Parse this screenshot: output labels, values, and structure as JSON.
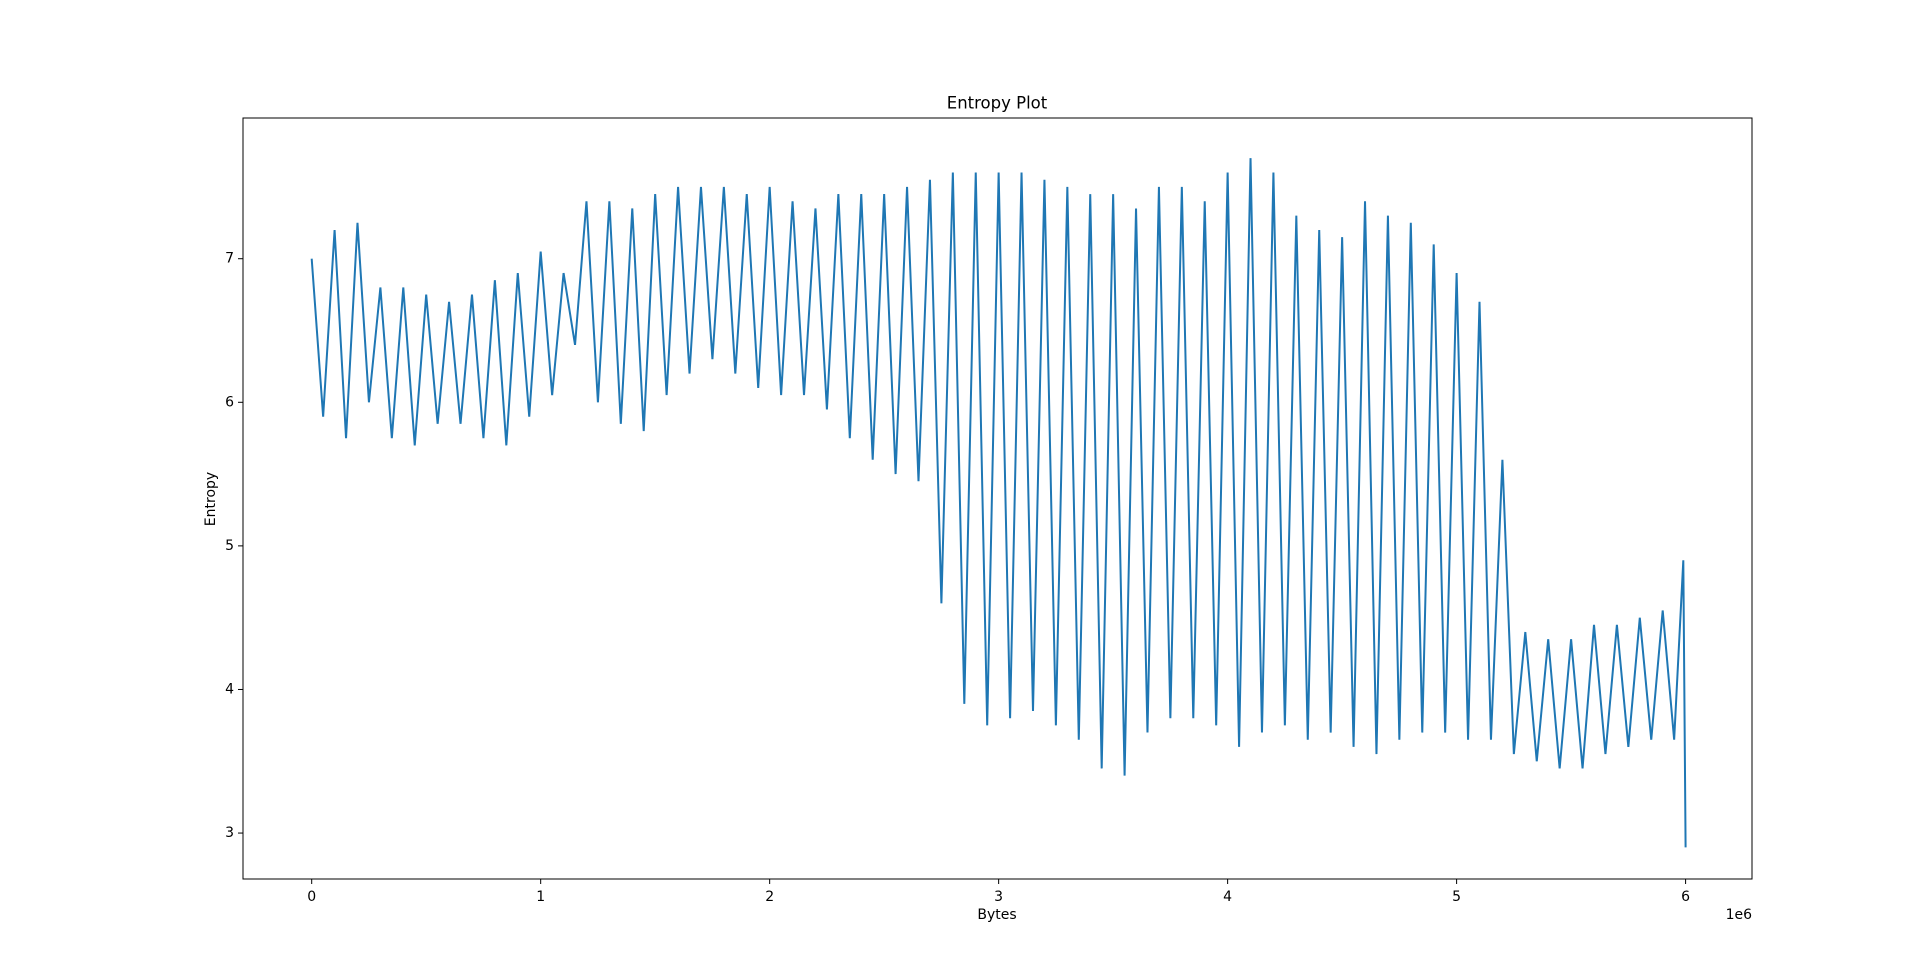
{
  "chart_data": {
    "type": "line",
    "title": "Entropy Plot",
    "x_label": "Bytes",
    "y_label": "Entropy",
    "x_offset_label": "1e6",
    "xlim": [
      -300000,
      6290000
    ],
    "ylim": [
      2.68,
      7.98
    ],
    "xticks": [
      {
        "value": 0,
        "label": "0"
      },
      {
        "value": 1000000,
        "label": "1"
      },
      {
        "value": 2000000,
        "label": "2"
      },
      {
        "value": 3000000,
        "label": "3"
      },
      {
        "value": 4000000,
        "label": "4"
      },
      {
        "value": 5000000,
        "label": "5"
      },
      {
        "value": 6000000,
        "label": "6"
      }
    ],
    "yticks": [
      3,
      4,
      5,
      6,
      7
    ],
    "grid": false,
    "x": [
      0,
      50000,
      100000,
      150000,
      200000,
      250000,
      300000,
      350000,
      400000,
      450000,
      500000,
      550000,
      600000,
      650000,
      700000,
      750000,
      800000,
      850000,
      900000,
      950000,
      1000000,
      1050000,
      1100000,
      1150000,
      1200000,
      1250000,
      1300000,
      1350000,
      1400000,
      1450000,
      1500000,
      1550000,
      1600000,
      1650000,
      1700000,
      1750000,
      1800000,
      1850000,
      1900000,
      1950000,
      2000000,
      2050000,
      2100000,
      2150000,
      2200000,
      2250000,
      2300000,
      2350000,
      2400000,
      2450000,
      2500000,
      2550000,
      2600000,
      2650000,
      2700000,
      2750000,
      2800000,
      2850000,
      2900000,
      2950000,
      3000000,
      3050000,
      3100000,
      3150000,
      3200000,
      3250000,
      3300000,
      3350000,
      3400000,
      3450000,
      3500000,
      3550000,
      3600000,
      3650000,
      3700000,
      3750000,
      3800000,
      3850000,
      3900000,
      3950000,
      4000000,
      4050000,
      4100000,
      4150000,
      4200000,
      4250000,
      4300000,
      4350000,
      4400000,
      4450000,
      4500000,
      4550000,
      4600000,
      4650000,
      4700000,
      4750000,
      4800000,
      4850000,
      4900000,
      4950000,
      5000000,
      5050000,
      5100000,
      5150000,
      5200000,
      5250000,
      5300000,
      5350000,
      5400000,
      5450000,
      5500000,
      5550000,
      5600000,
      5650000,
      5700000,
      5750000,
      5800000,
      5850000,
      5900000,
      5950000,
      5990000,
      6000000
    ],
    "series": [
      {
        "color": "#1f77b4",
        "values": [
          7.0,
          5.9,
          7.2,
          5.75,
          7.25,
          6.0,
          6.8,
          5.75,
          6.8,
          5.7,
          6.75,
          5.85,
          6.7,
          5.85,
          6.75,
          5.75,
          6.85,
          5.7,
          6.9,
          5.9,
          7.05,
          6.05,
          6.9,
          6.4,
          7.4,
          6.0,
          7.4,
          5.85,
          7.35,
          5.8,
          7.45,
          6.05,
          7.5,
          6.2,
          7.5,
          6.3,
          7.5,
          6.2,
          7.45,
          6.1,
          7.5,
          6.05,
          7.4,
          6.05,
          7.35,
          5.95,
          7.45,
          5.75,
          7.45,
          5.6,
          7.45,
          5.5,
          7.5,
          5.45,
          7.55,
          4.6,
          7.6,
          3.9,
          7.6,
          3.75,
          7.6,
          3.8,
          7.6,
          3.85,
          7.55,
          3.75,
          7.5,
          3.65,
          7.45,
          3.45,
          7.45,
          3.4,
          7.35,
          3.7,
          7.5,
          3.8,
          7.5,
          3.8,
          7.4,
          3.75,
          7.6,
          3.6,
          7.7,
          3.7,
          7.6,
          3.75,
          7.3,
          3.65,
          7.2,
          3.7,
          7.15,
          3.6,
          7.4,
          3.55,
          7.3,
          3.65,
          7.25,
          3.7,
          7.1,
          3.7,
          6.9,
          3.65,
          6.7,
          3.65,
          5.6,
          3.55,
          4.4,
          3.5,
          4.35,
          3.45,
          4.35,
          3.45,
          4.45,
          3.55,
          4.45,
          3.6,
          4.5,
          3.65,
          4.55,
          3.65,
          4.9,
          2.9
        ]
      }
    ]
  }
}
